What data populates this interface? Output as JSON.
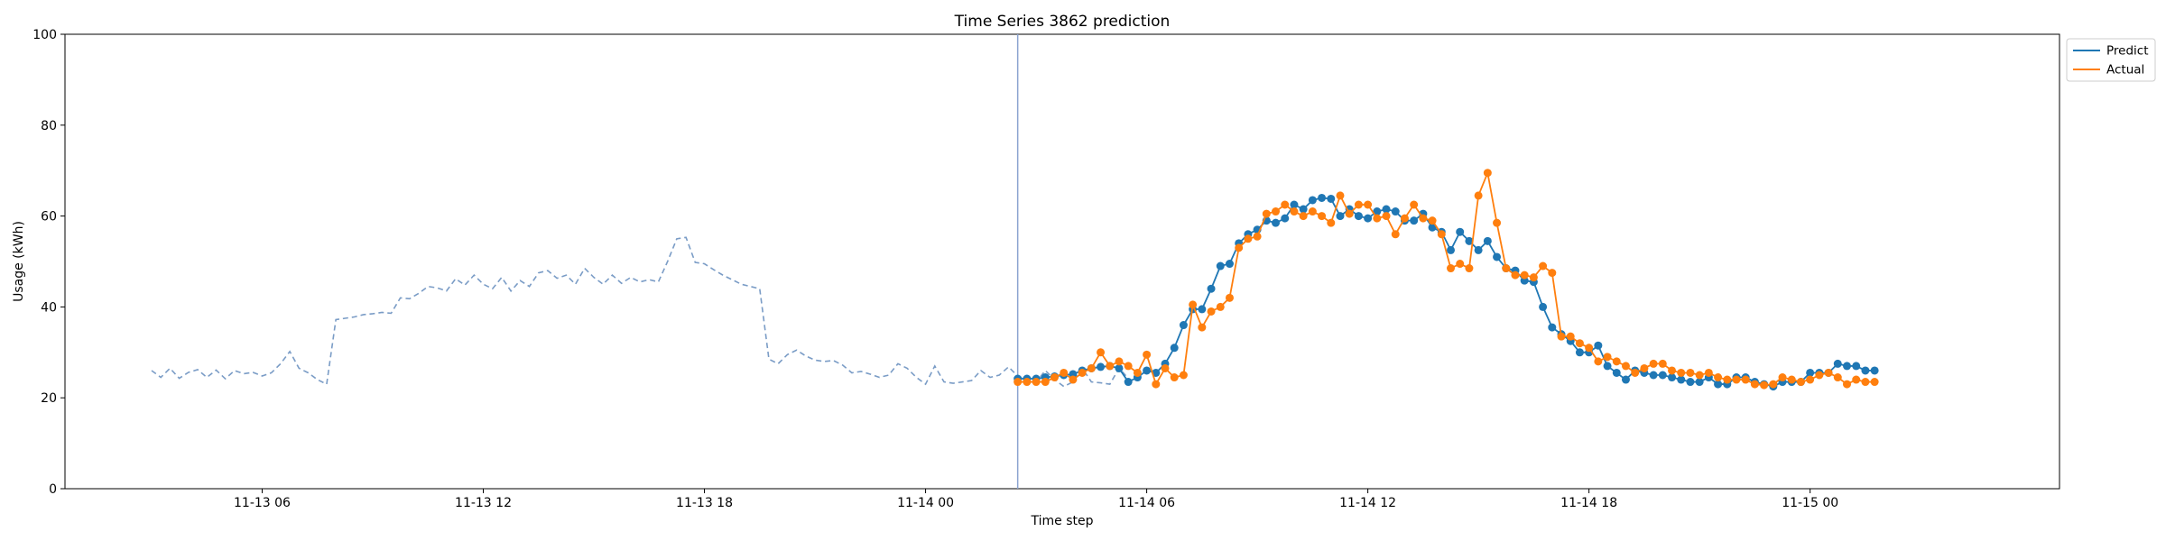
{
  "chart_data": {
    "type": "line",
    "title": "Time Series 3862 prediction",
    "xlabel": "Time step",
    "ylabel": "Usage (kWh)",
    "ylim": [
      0,
      100
    ],
    "yticks": [
      0,
      20,
      40,
      60,
      80,
      100
    ],
    "xlim": [
      "2019-11-13 00:39",
      "2019-11-15 06:46"
    ],
    "xticks": [
      {
        "t": "2019-11-13 06:00",
        "label": "11-13 06"
      },
      {
        "t": "2019-11-13 12:00",
        "label": "11-13 12"
      },
      {
        "t": "2019-11-13 18:00",
        "label": "11-13 18"
      },
      {
        "t": "2019-11-14 00:00",
        "label": "11-14 00"
      },
      {
        "t": "2019-11-14 06:00",
        "label": "11-14 06"
      },
      {
        "t": "2019-11-14 12:00",
        "label": "11-14 12"
      },
      {
        "t": "2019-11-14 18:00",
        "label": "11-14 18"
      },
      {
        "t": "2019-11-15 00:00",
        "label": "11-15 00"
      }
    ],
    "interval_minutes": 15,
    "forecast_start": "2019-11-14 02:30",
    "legend": {
      "position": "top-right",
      "entries": [
        "Predict",
        "Actual"
      ]
    },
    "colors": {
      "history": "#7a9cc6",
      "predict": "#1f77b4",
      "actual": "#ff7f0e",
      "forecast_line": "#8aa3d0"
    },
    "series": [
      {
        "role": "history",
        "start": "2019-11-13 03:00",
        "values": [
          26,
          24.5,
          26.5,
          24.3,
          25.6,
          26.2,
          24.5,
          26.1,
          24.2,
          26,
          25.3,
          25.6,
          24.8,
          25.5,
          27.5,
          30.2,
          26.5,
          25.5,
          24,
          23,
          37.2,
          37.5,
          37.8,
          38.3,
          38.5,
          38.8,
          38.6,
          42,
          41.8,
          43,
          44.5,
          44.2,
          43.5,
          46.2,
          44.8,
          47,
          45,
          44,
          46.5,
          43.5,
          45.8,
          44.5,
          47.5,
          48,
          46.3,
          47,
          45,
          48.5,
          46.5,
          45,
          47,
          45.2,
          46.5,
          45.5,
          46,
          45.5,
          50,
          55,
          55.3,
          49.8,
          49.5,
          48.2,
          47,
          46,
          45,
          44.5,
          44,
          28.5,
          27.5,
          29.5,
          30.5,
          29.2,
          28.3,
          28,
          28.2,
          27.2,
          25.5,
          25.8,
          25.2,
          24.5,
          25,
          27.5,
          26.5,
          24.5,
          23,
          27,
          23.5,
          23.2,
          23.5,
          23.8,
          26,
          24.5,
          25,
          26.8,
          24.8,
          24,
          23.5,
          26,
          24,
          22.5,
          23.5,
          26.5,
          23.5,
          23.3,
          23,
          26.5,
          24.3
        ]
      },
      {
        "name": "Predict",
        "start": "2019-11-14 02:30",
        "values": [
          24.2,
          24.2,
          24.2,
          24.5,
          24.7,
          25,
          25.2,
          26,
          26.5,
          26.8,
          27,
          26.5,
          23.5,
          24.5,
          26,
          25.5,
          27.5,
          31,
          36,
          39.5,
          39.5,
          44,
          49,
          49.5,
          54,
          56,
          57,
          59,
          58.5,
          59.5,
          62.5,
          61.5,
          63.5,
          64,
          63.8,
          60,
          61.5,
          60,
          59.5,
          61,
          61.5,
          61,
          59,
          59,
          60.5,
          57.5,
          56.5,
          52.5,
          56.5,
          54.5,
          52.5,
          54.5,
          51,
          48.5,
          48,
          45.8,
          45.5,
          40,
          35.5,
          34,
          32.5,
          30,
          30,
          31.5,
          27,
          25.5,
          24,
          26,
          25.5,
          25,
          25,
          24.5,
          24,
          23.5,
          23.5,
          24.5,
          23,
          23,
          24.5,
          24.5,
          23.5,
          23,
          22.5,
          23.5,
          23.5,
          23.5,
          25.5,
          25.5,
          25.5,
          27.5,
          27,
          27,
          26,
          26
        ]
      },
      {
        "name": "Actual",
        "start": "2019-11-14 02:30",
        "values": [
          23.5,
          23.5,
          23.5,
          23.5,
          24.5,
          25.5,
          24,
          25.5,
          26.5,
          30,
          27,
          28,
          27,
          25.5,
          29.5,
          23,
          26.5,
          24.5,
          25,
          40.5,
          35.5,
          39,
          40,
          42,
          53,
          55,
          55.5,
          60.5,
          61,
          62.5,
          61,
          60,
          61,
          60,
          58.5,
          64.5,
          60.5,
          62.5,
          62.5,
          59.5,
          60,
          56,
          59.5,
          62.5,
          59.5,
          59,
          56,
          48.5,
          49.5,
          48.5,
          64.5,
          69.5,
          58.5,
          48.5,
          47,
          47,
          46.5,
          49,
          47.5,
          33.5,
          33.5,
          32,
          31,
          28,
          29,
          28,
          27,
          25.5,
          26.5,
          27.5,
          27.5,
          26,
          25.5,
          25.5,
          25,
          25.5,
          24.5,
          24,
          24,
          24,
          23,
          22.8,
          23,
          24.5,
          24,
          23.5,
          24,
          25,
          25.5,
          24.5,
          23,
          24,
          23.5,
          23.5
        ]
      }
    ]
  }
}
